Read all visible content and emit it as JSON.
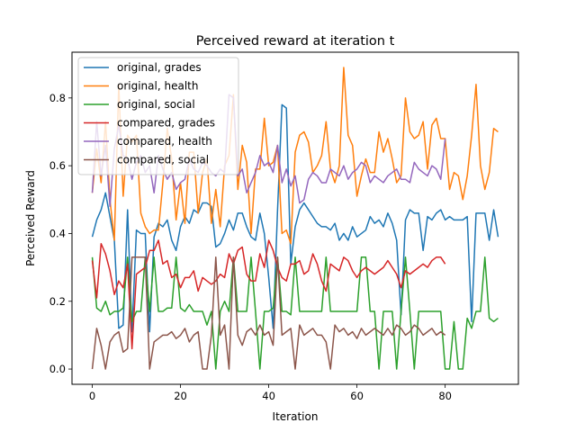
{
  "chart_data": {
    "type": "line",
    "title": "Perceived reward at iteration t",
    "xlabel": "Iteration",
    "ylabel": "Perceived Reward",
    "xlim": [
      -4.6,
      96.6
    ],
    "ylim": [
      -0.045,
      0.935
    ],
    "xticks": [
      0,
      20,
      40,
      60,
      80
    ],
    "yticks": [
      0.0,
      0.2,
      0.4,
      0.6,
      0.8
    ],
    "xtick_labels": [
      "0",
      "20",
      "40",
      "60",
      "80"
    ],
    "ytick_labels": [
      "0.0",
      "0.2",
      "0.4",
      "0.6",
      "0.8"
    ],
    "grid": false,
    "legend_position": "upper-left",
    "series": [
      {
        "name": "original, grades",
        "color": "#1f77b4",
        "x_start": 0,
        "values": [
          0.39,
          0.44,
          0.47,
          0.52,
          0.45,
          0.38,
          0.12,
          0.13,
          0.47,
          0.11,
          0.41,
          0.4,
          0.4,
          0.11,
          0.39,
          0.43,
          0.42,
          0.44,
          0.38,
          0.35,
          0.42,
          0.45,
          0.43,
          0.47,
          0.46,
          0.49,
          0.49,
          0.48,
          0.36,
          0.37,
          0.4,
          0.44,
          0.41,
          0.46,
          0.46,
          0.42,
          0.39,
          0.38,
          0.46,
          0.4,
          0.27,
          0.12,
          0.47,
          0.78,
          0.77,
          0.31,
          0.42,
          0.47,
          0.49,
          0.47,
          0.45,
          0.43,
          0.42,
          0.42,
          0.41,
          0.43,
          0.38,
          0.4,
          0.38,
          0.42,
          0.39,
          0.4,
          0.41,
          0.45,
          0.43,
          0.44,
          0.42,
          0.46,
          0.43,
          0.38,
          0.16,
          0.44,
          0.47,
          0.46,
          0.46,
          0.35,
          0.45,
          0.44,
          0.46,
          0.47,
          0.44,
          0.45,
          0.44,
          0.44,
          0.44,
          0.45,
          0.14,
          0.46,
          0.46,
          0.46,
          0.38,
          0.47,
          0.39
        ]
      },
      {
        "name": "original, health",
        "color": "#ff7f0e",
        "x_start": 0,
        "values": [
          0.52,
          0.65,
          0.55,
          0.73,
          0.5,
          0.38,
          0.84,
          0.51,
          0.69,
          0.67,
          0.69,
          0.46,
          0.42,
          0.4,
          0.41,
          0.41,
          0.55,
          0.71,
          0.62,
          0.44,
          0.55,
          0.43,
          0.64,
          0.64,
          0.46,
          0.58,
          0.62,
          0.43,
          0.53,
          0.42,
          0.6,
          0.63,
          0.81,
          0.53,
          0.66,
          0.61,
          0.4,
          0.59,
          0.59,
          0.74,
          0.6,
          0.61,
          0.66,
          0.4,
          0.41,
          0.37,
          0.64,
          0.69,
          0.7,
          0.67,
          0.58,
          0.6,
          0.63,
          0.73,
          0.59,
          0.55,
          0.6,
          0.89,
          0.69,
          0.66,
          0.51,
          0.57,
          0.62,
          0.58,
          0.58,
          0.7,
          0.64,
          0.68,
          0.62,
          0.55,
          0.57,
          0.8,
          0.7,
          0.68,
          0.69,
          0.73,
          0.59,
          0.72,
          0.74,
          0.68,
          0.68,
          0.53,
          0.58,
          0.57,
          0.5,
          0.57,
          0.69,
          0.84,
          0.6,
          0.53,
          0.58,
          0.71,
          0.7
        ]
      },
      {
        "name": "original, social",
        "color": "#2ca02c",
        "x_start": 0,
        "values": [
          0.33,
          0.18,
          0.17,
          0.2,
          0.16,
          0.17,
          0.17,
          0.18,
          0.33,
          0.14,
          0.17,
          0.17,
          0.33,
          0.17,
          0.33,
          0.17,
          0.17,
          0.18,
          0.18,
          0.33,
          0.18,
          0.17,
          0.19,
          0.17,
          0.17,
          0.17,
          0.13,
          0.17,
          0.0,
          0.17,
          0.2,
          0.17,
          0.33,
          0.17,
          0.17,
          0.17,
          0.33,
          0.17,
          0.0,
          0.17,
          0.17,
          0.18,
          0.33,
          0.17,
          0.17,
          0.16,
          0.33,
          0.17,
          0.17,
          0.17,
          0.17,
          0.17,
          0.17,
          0.33,
          0.17,
          0.17,
          0.17,
          0.17,
          0.17,
          0.17,
          0.17,
          0.33,
          0.33,
          0.17,
          0.17,
          0.0,
          0.17,
          0.17,
          0.17,
          0.0,
          0.17,
          0.33,
          0.17,
          0.0,
          0.17,
          0.17,
          0.17,
          0.17,
          0.17,
          0.17,
          0.0,
          0.0,
          0.14,
          0.0,
          0.0,
          0.15,
          0.12,
          0.17,
          0.17,
          0.33,
          0.15,
          0.14,
          0.15
        ]
      },
      {
        "name": "compared, grades",
        "color": "#d62728",
        "x_start": 0,
        "values": [
          0.32,
          0.21,
          0.37,
          0.34,
          0.29,
          0.22,
          0.26,
          0.24,
          0.31,
          0.06,
          0.28,
          0.29,
          0.3,
          0.35,
          0.35,
          0.38,
          0.31,
          0.32,
          0.27,
          0.28,
          0.24,
          0.27,
          0.27,
          0.29,
          0.23,
          0.27,
          0.26,
          0.25,
          0.26,
          0.28,
          0.27,
          0.34,
          0.31,
          0.35,
          0.36,
          0.28,
          0.26,
          0.26,
          0.34,
          0.3,
          0.38,
          0.35,
          0.3,
          0.27,
          0.26,
          0.31,
          0.31,
          0.32,
          0.28,
          0.29,
          0.34,
          0.31,
          0.26,
          0.23,
          0.31,
          0.3,
          0.29,
          0.33,
          0.32,
          0.29,
          0.27,
          0.29,
          0.3,
          0.29,
          0.28,
          0.29,
          0.3,
          0.32,
          0.3,
          0.28,
          0.24,
          0.29,
          0.28,
          0.29,
          0.3,
          0.31,
          0.3,
          0.32,
          0.33,
          0.33,
          0.31
        ]
      },
      {
        "name": "compared, health",
        "color": "#9467bd",
        "x_start": 0,
        "values": [
          0.52,
          0.73,
          0.57,
          0.66,
          0.48,
          0.65,
          0.72,
          0.63,
          0.62,
          0.56,
          0.61,
          0.63,
          0.58,
          0.6,
          0.52,
          0.63,
          0.59,
          0.56,
          0.58,
          0.53,
          0.55,
          0.56,
          0.62,
          0.59,
          0.58,
          0.61,
          0.6,
          0.58,
          0.57,
          0.59,
          0.58,
          0.81,
          0.8,
          0.57,
          0.59,
          0.52,
          0.55,
          0.58,
          0.63,
          0.6,
          0.61,
          0.58,
          0.66,
          0.55,
          0.59,
          0.54,
          0.57,
          0.49,
          0.5,
          0.56,
          0.58,
          0.57,
          0.55,
          0.55,
          0.59,
          0.58,
          0.57,
          0.6,
          0.56,
          0.58,
          0.59,
          0.61,
          0.6,
          0.55,
          0.57,
          0.56,
          0.55,
          0.57,
          0.58,
          0.59,
          0.56,
          0.56,
          0.55,
          0.61,
          0.59,
          0.58,
          0.57,
          0.6,
          0.59,
          0.56,
          0.68
        ]
      },
      {
        "name": "compared, social",
        "color": "#8c564b",
        "x_start": 0,
        "values": [
          0.0,
          0.12,
          0.07,
          0.0,
          0.08,
          0.1,
          0.11,
          0.05,
          0.06,
          0.33,
          0.33,
          0.33,
          0.33,
          0.0,
          0.08,
          0.09,
          0.1,
          0.1,
          0.11,
          0.09,
          0.1,
          0.12,
          0.08,
          0.1,
          0.11,
          0.0,
          0.0,
          0.1,
          0.33,
          0.1,
          0.13,
          0.0,
          0.33,
          0.1,
          0.07,
          0.11,
          0.12,
          0.1,
          0.13,
          0.1,
          0.11,
          0.07,
          0.33,
          0.1,
          0.11,
          0.12,
          0.0,
          0.13,
          0.1,
          0.11,
          0.12,
          0.1,
          0.1,
          0.08,
          0.0,
          0.13,
          0.11,
          0.12,
          0.1,
          0.11,
          0.09,
          0.12,
          0.1,
          0.11,
          0.12,
          0.11,
          0.1,
          0.12,
          0.1,
          0.13,
          0.12,
          0.1,
          0.11,
          0.13,
          0.12,
          0.1,
          0.11,
          0.12,
          0.1,
          0.11,
          0.1
        ]
      }
    ]
  }
}
